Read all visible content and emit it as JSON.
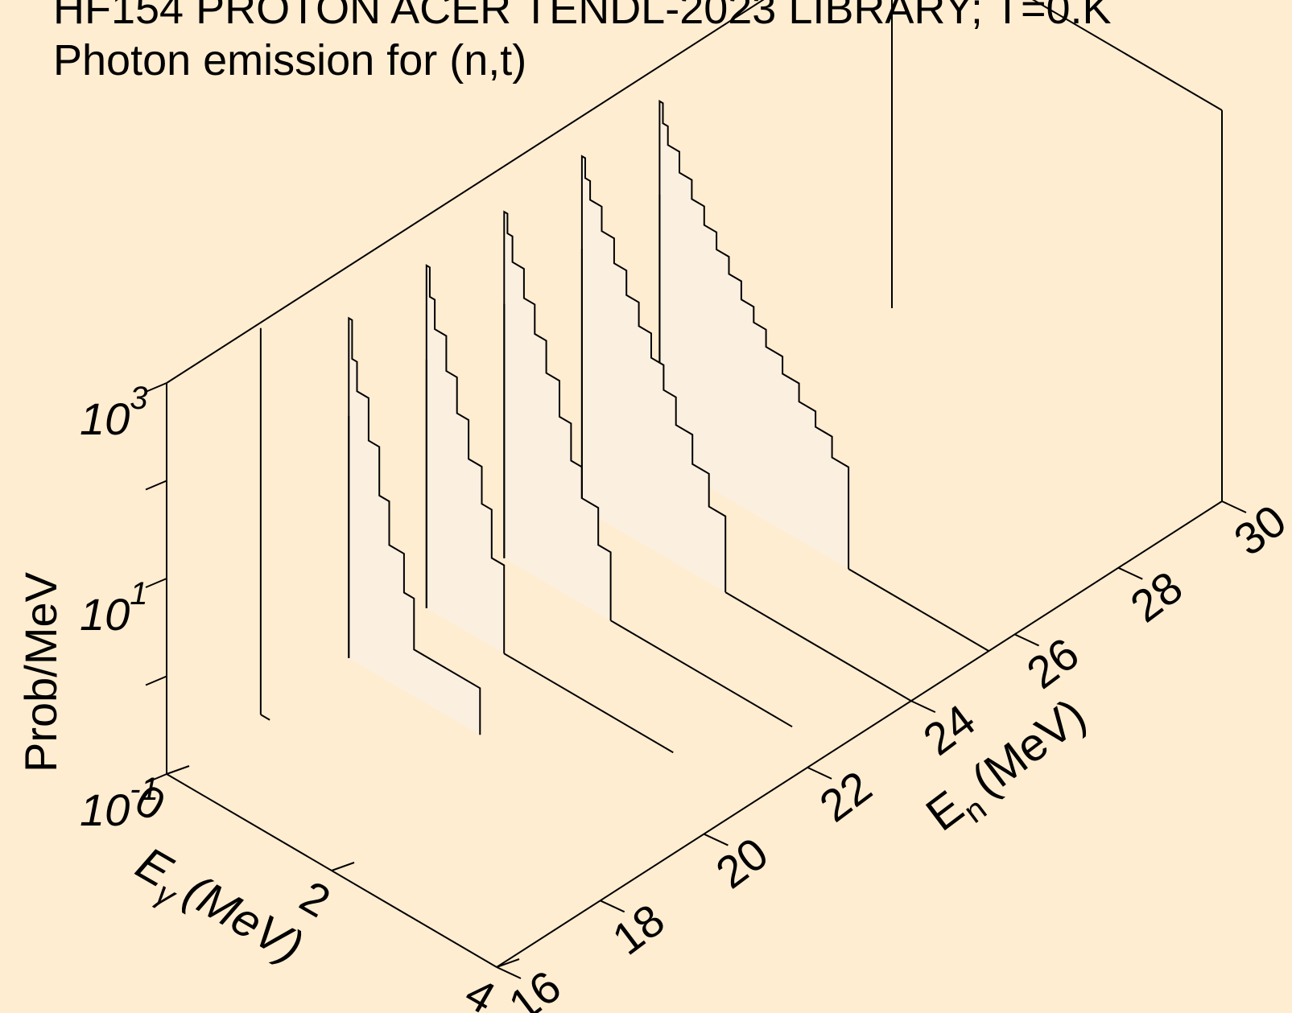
{
  "chart_data": {
    "type": "3d-waterfall",
    "title": "HF154 PROTON ACER TENDL-2023 LIBRARY; T=0.K",
    "subtitle": "Photon emission for (n,t)",
    "zlabel": "Prob/MeV",
    "z_scale": "log",
    "z_ticks": [
      {
        "base": "10",
        "exp": "3",
        "value": 1000
      },
      {
        "base": "10",
        "exp": "1",
        "value": 10
      },
      {
        "base": "10",
        "exp": "-1",
        "value": 0.1
      }
    ],
    "zlim": [
      0.1,
      1000
    ],
    "x_axis": {
      "label": "E",
      "label_sub": "γ",
      "label_unit": "(MeV)",
      "ticks": [
        "0",
        "2",
        "4"
      ],
      "range": [
        0,
        4
      ]
    },
    "y_axis": {
      "label": "E",
      "label_sub": "n",
      "label_unit": "(MeV)",
      "ticks": [
        "16",
        "18",
        "20",
        "22",
        "24",
        "26",
        "28",
        "30"
      ],
      "range": [
        16,
        30
      ]
    },
    "series": [
      {
        "incident_energy": 19.5,
        "spike_at": 0.01,
        "spike_height": 30,
        "bins": [
          [
            0.01,
            0.05,
            300
          ],
          [
            0.05,
            0.11,
            120
          ],
          [
            0.11,
            0.25,
            60
          ],
          [
            0.25,
            0.38,
            22
          ],
          [
            0.38,
            0.5,
            7
          ],
          [
            0.5,
            0.68,
            2.5
          ],
          [
            0.68,
            0.8,
            1.0
          ],
          [
            0.8,
            1.6,
            0.3
          ]
        ],
        "zero_to": 1.6
      },
      {
        "incident_energy": 21,
        "spike_at": 0.01,
        "spike_height": 35,
        "bins": [
          [
            0.01,
            0.05,
            320
          ],
          [
            0.05,
            0.11,
            160
          ],
          [
            0.11,
            0.25,
            80
          ],
          [
            0.25,
            0.38,
            35
          ],
          [
            0.38,
            0.52,
            15
          ],
          [
            0.52,
            0.68,
            6
          ],
          [
            0.68,
            0.8,
            2.5
          ],
          [
            0.8,
            0.95,
            0.8
          ]
        ],
        "zero_to": 3.0
      },
      {
        "incident_energy": 22.5,
        "spike_at": 0.01,
        "spike_height": 40,
        "bins": [
          [
            0.01,
            0.05,
            350
          ],
          [
            0.05,
            0.11,
            220
          ],
          [
            0.11,
            0.25,
            120
          ],
          [
            0.25,
            0.38,
            60
          ],
          [
            0.38,
            0.52,
            30
          ],
          [
            0.52,
            0.68,
            14
          ],
          [
            0.68,
            0.82,
            6
          ],
          [
            0.82,
            0.95,
            2.5
          ],
          [
            0.95,
            1.15,
            1.2
          ],
          [
            1.15,
            1.3,
            0.5
          ]
        ],
        "zero_to": 3.5
      },
      {
        "incident_energy": 24,
        "spike_at": 0.01,
        "spike_height": 45,
        "bins": [
          [
            0.01,
            0.05,
            400
          ],
          [
            0.05,
            0.11,
            250
          ],
          [
            0.11,
            0.25,
            160
          ],
          [
            0.25,
            0.4,
            90
          ],
          [
            0.4,
            0.55,
            50
          ],
          [
            0.55,
            0.7,
            28
          ],
          [
            0.7,
            0.85,
            16
          ],
          [
            0.85,
            1.0,
            9
          ],
          [
            1.0,
            1.15,
            5
          ],
          [
            1.15,
            1.35,
            2.6
          ],
          [
            1.35,
            1.55,
            1.3
          ],
          [
            1.55,
            1.75,
            0.6
          ]
        ],
        "zero_to": 4.0
      },
      {
        "incident_energy": 25.5,
        "spike_at": 0.01,
        "spike_height": 50,
        "bins": [
          [
            0.01,
            0.05,
            450
          ],
          [
            0.05,
            0.11,
            280
          ],
          [
            0.11,
            0.25,
            180
          ],
          [
            0.25,
            0.4,
            110
          ],
          [
            0.4,
            0.55,
            70
          ],
          [
            0.55,
            0.7,
            45
          ],
          [
            0.7,
            0.85,
            30
          ],
          [
            0.85,
            1.0,
            20
          ],
          [
            1.0,
            1.15,
            13
          ],
          [
            1.15,
            1.3,
            9
          ],
          [
            1.3,
            1.5,
            6
          ],
          [
            1.5,
            1.7,
            4
          ],
          [
            1.7,
            1.9,
            2.6
          ],
          [
            1.9,
            2.1,
            1.8
          ],
          [
            2.1,
            2.3,
            1.1
          ]
        ],
        "zero_to": 4.0
      }
    ],
    "isolated_line": {
      "incident_energy": 17.8,
      "at": 0.01,
      "height": 900
    }
  }
}
